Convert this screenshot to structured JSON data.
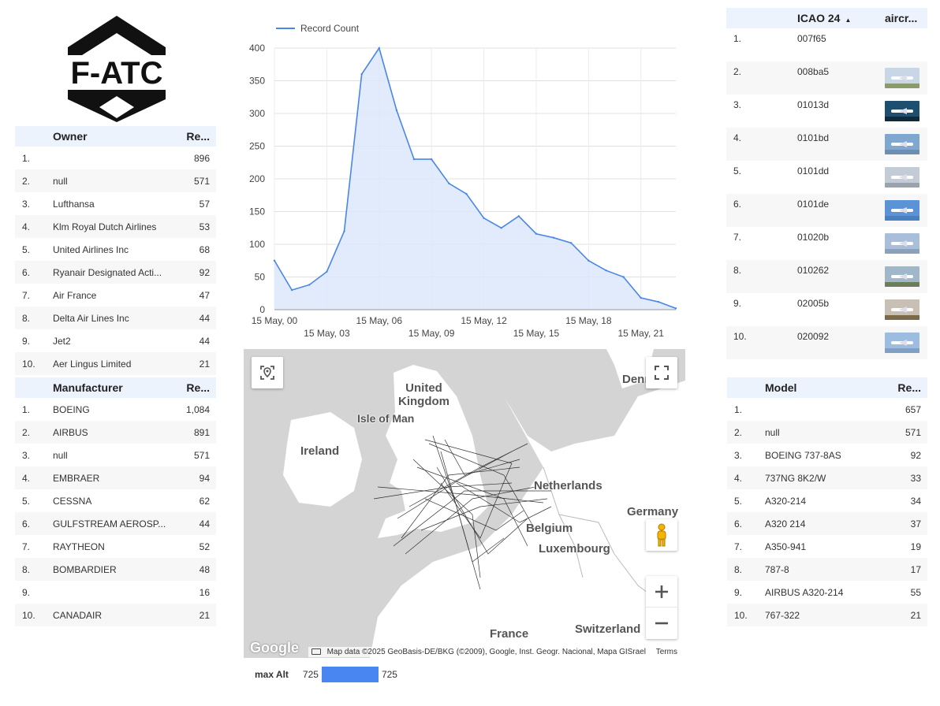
{
  "logo": {
    "text": "F-ATC"
  },
  "owner_table": {
    "headers": [
      "Owner",
      "Re..."
    ],
    "rows": [
      {
        "idx": "1.",
        "name": "",
        "value": "896"
      },
      {
        "idx": "2.",
        "name": "null",
        "value": "571"
      },
      {
        "idx": "3.",
        "name": "Lufthansa",
        "value": "57"
      },
      {
        "idx": "4.",
        "name": "Klm Royal Dutch Airlines",
        "value": "53"
      },
      {
        "idx": "5.",
        "name": "United Airlines Inc",
        "value": "68"
      },
      {
        "idx": "6.",
        "name": "Ryanair Designated Acti...",
        "value": "92"
      },
      {
        "idx": "7.",
        "name": "Air France",
        "value": "47"
      },
      {
        "idx": "8.",
        "name": "Delta Air Lines Inc",
        "value": "44"
      },
      {
        "idx": "9.",
        "name": "Jet2",
        "value": "44"
      },
      {
        "idx": "10.",
        "name": "Aer Lingus Limited",
        "value": "21"
      }
    ]
  },
  "manufacturer_table": {
    "headers": [
      "Manufacturer",
      "Re..."
    ],
    "rows": [
      {
        "idx": "1.",
        "name": "BOEING",
        "value": "1,084"
      },
      {
        "idx": "2.",
        "name": "AIRBUS",
        "value": "891"
      },
      {
        "idx": "3.",
        "name": "null",
        "value": "571"
      },
      {
        "idx": "4.",
        "name": "EMBRAER",
        "value": "94"
      },
      {
        "idx": "5.",
        "name": "CESSNA",
        "value": "62"
      },
      {
        "idx": "6.",
        "name": "GULFSTREAM AEROSP...",
        "value": "44"
      },
      {
        "idx": "7.",
        "name": "RAYTHEON",
        "value": "52"
      },
      {
        "idx": "8.",
        "name": "BOMBARDIER",
        "value": "48"
      },
      {
        "idx": "9.",
        "name": "",
        "value": "16"
      },
      {
        "idx": "10.",
        "name": "CANADAIR",
        "value": "21"
      }
    ]
  },
  "model_table": {
    "headers": [
      "Model",
      "Re..."
    ],
    "rows": [
      {
        "idx": "1.",
        "name": "",
        "value": "657"
      },
      {
        "idx": "2.",
        "name": "null",
        "value": "571"
      },
      {
        "idx": "3.",
        "name": "BOEING 737-8AS",
        "value": "92"
      },
      {
        "idx": "4.",
        "name": "737NG 8K2/W",
        "value": "33"
      },
      {
        "idx": "5.",
        "name": "A320-214",
        "value": "34"
      },
      {
        "idx": "6.",
        "name": "A320 214",
        "value": "37"
      },
      {
        "idx": "7.",
        "name": "A350-941",
        "value": "19"
      },
      {
        "idx": "8.",
        "name": "787-8",
        "value": "17"
      },
      {
        "idx": "9.",
        "name": "AIRBUS A320-214",
        "value": "55"
      },
      {
        "idx": "10.",
        "name": "767-322",
        "value": "21"
      }
    ]
  },
  "icao_table": {
    "headers": [
      "ICAO 24",
      "aircr..."
    ],
    "sort_indicator": "▲",
    "rows": [
      {
        "idx": "1.",
        "code": "007f65",
        "has_image": false
      },
      {
        "idx": "2.",
        "code": "008ba5",
        "has_image": true,
        "sky": "#c9d6e6",
        "ground": "#8a9a6a"
      },
      {
        "idx": "3.",
        "code": "01013d",
        "has_image": true,
        "sky": "#1f4f6e",
        "ground": "#0e2a3c"
      },
      {
        "idx": "4.",
        "code": "0101bd",
        "has_image": true,
        "sky": "#7fa7d0",
        "ground": "#6d8eb3"
      },
      {
        "idx": "5.",
        "code": "0101dd",
        "has_image": true,
        "sky": "#c3cbd6",
        "ground": "#9aa3ae"
      },
      {
        "idx": "6.",
        "code": "0101de",
        "has_image": true,
        "sky": "#5b93d6",
        "ground": "#4a7fc0"
      },
      {
        "idx": "7.",
        "code": "01020b",
        "has_image": true,
        "sky": "#a9bfd9",
        "ground": "#8aa0bb"
      },
      {
        "idx": "8.",
        "code": "010262",
        "has_image": true,
        "sky": "#9fb7c9",
        "ground": "#6c7d5a"
      },
      {
        "idx": "9.",
        "code": "02005b",
        "has_image": true,
        "sky": "#c8c0b4",
        "ground": "#7a6a4a"
      },
      {
        "idx": "10.",
        "code": "020092",
        "has_image": true,
        "sky": "#9cbde0",
        "ground": "#7f9fc4"
      }
    ]
  },
  "chart_data": {
    "type": "area",
    "series": [
      {
        "name": "Record Count",
        "x": [
          0,
          1,
          2,
          3,
          4,
          5,
          6,
          7,
          8,
          9,
          10,
          11,
          12,
          13,
          14,
          15,
          16,
          17,
          18,
          19,
          20,
          21,
          22,
          23
        ],
        "values": [
          75,
          30,
          38,
          58,
          120,
          360,
          400,
          305,
          230,
          230,
          193,
          177,
          140,
          125,
          143,
          116,
          110,
          102,
          75,
          60,
          50,
          18,
          12,
          2
        ]
      }
    ],
    "x_tick_labels": [
      {
        "x": 0,
        "label": "15 May, 00",
        "row": 0
      },
      {
        "x": 3,
        "label": "15 May, 03",
        "row": 1
      },
      {
        "x": 6,
        "label": "15 May, 06",
        "row": 0
      },
      {
        "x": 9,
        "label": "15 May, 09",
        "row": 1
      },
      {
        "x": 12,
        "label": "15 May, 12",
        "row": 0
      },
      {
        "x": 15,
        "label": "15 May, 15",
        "row": 1
      },
      {
        "x": 18,
        "label": "15 May, 18",
        "row": 0
      },
      {
        "x": 21,
        "label": "15 May, 21",
        "row": 1
      }
    ],
    "y_ticks": [
      0,
      50,
      100,
      150,
      200,
      250,
      300,
      350,
      400
    ],
    "ylim": [
      0,
      400
    ],
    "xlim": [
      0,
      23
    ],
    "grid": true,
    "legend_position": "top-left",
    "line_color": "#4a86e8",
    "fill_color": "#dce8fb"
  },
  "map": {
    "labels": {
      "united_kingdom": "United\nKingdom",
      "isle_of_man": "Isle of Man",
      "ireland": "Ireland",
      "netherlands": "Netherlands",
      "germany": "Germany",
      "belgium": "Belgium",
      "luxembourg": "Luxembourg",
      "france": "France",
      "switzerland": "Switzerland",
      "denmark": "Denı"
    },
    "attribution": "Map data ©2025 GeoBasis-DE/BKG (©2009), Google, Inst. Geogr. Nacional, Mapa GISrael",
    "terms": "Terms",
    "google": "Google"
  },
  "max_alt": {
    "label": "max Alt",
    "min_value": "725",
    "max_value": "725"
  }
}
